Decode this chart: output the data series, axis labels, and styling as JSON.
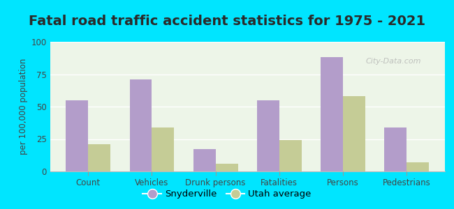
{
  "title": "Fatal road traffic accident statistics for 1975 - 2021",
  "categories": [
    "Count",
    "Vehicles",
    "Drunk persons",
    "Fatalities",
    "Persons",
    "Pedestrians"
  ],
  "snyderville": [
    55,
    71,
    17,
    55,
    88,
    34
  ],
  "utah_average": [
    21,
    34,
    6,
    24,
    58,
    7
  ],
  "ylabel": "per 100,000 population",
  "ylim": [
    0,
    100
  ],
  "yticks": [
    0,
    25,
    50,
    75,
    100
  ],
  "bar_color_snyderville": "#b39dca",
  "bar_color_utah": "#c5cc96",
  "background_color": "#00e5ff",
  "plot_bg_color": "#f0f7ee",
  "legend_snyderville": "Snyderville",
  "legend_utah": "Utah average",
  "bar_width": 0.35,
  "title_fontsize": 14,
  "watermark": "City-Data.com",
  "tick_label_color": "#444444",
  "ylabel_color": "#444444"
}
